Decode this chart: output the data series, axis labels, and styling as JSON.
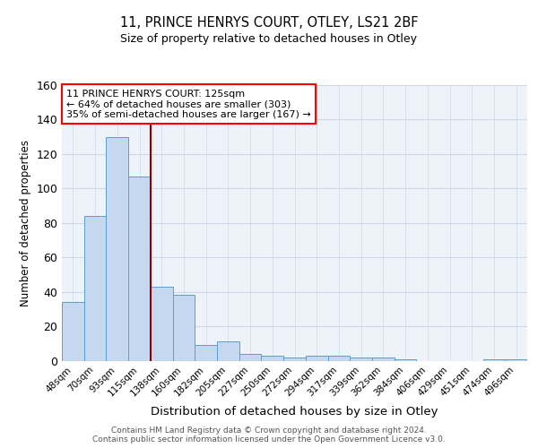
{
  "title1": "11, PRINCE HENRYS COURT, OTLEY, LS21 2BF",
  "title2": "Size of property relative to detached houses in Otley",
  "xlabel": "Distribution of detached houses by size in Otley",
  "ylabel": "Number of detached properties",
  "categories": [
    "48sqm",
    "70sqm",
    "93sqm",
    "115sqm",
    "138sqm",
    "160sqm",
    "182sqm",
    "205sqm",
    "227sqm",
    "250sqm",
    "272sqm",
    "294sqm",
    "317sqm",
    "339sqm",
    "362sqm",
    "384sqm",
    "406sqm",
    "429sqm",
    "451sqm",
    "474sqm",
    "496sqm"
  ],
  "values": [
    34,
    84,
    130,
    107,
    43,
    38,
    9,
    11,
    4,
    3,
    2,
    3,
    3,
    2,
    2,
    1,
    0,
    0,
    0,
    1,
    1
  ],
  "bar_color": "#c5d8f0",
  "bar_edge_color": "#5a9fd4",
  "property_line_label": "11 PRINCE HENRYS COURT: 125sqm",
  "annotation_line1": "← 64% of detached houses are smaller (303)",
  "annotation_line2": "35% of semi-detached houses are larger (167) →",
  "annotation_box_edge_color": "red",
  "property_line_color": "darkred",
  "ylim": [
    0,
    160
  ],
  "yticks": [
    0,
    20,
    40,
    60,
    80,
    100,
    120,
    140,
    160
  ],
  "footnote": "Contains HM Land Registry data © Crown copyright and database right 2024.\nContains public sector information licensed under the Open Government Licence v3.0.",
  "bg_color": "#eef2f9",
  "grid_color": "#d0d8e8"
}
